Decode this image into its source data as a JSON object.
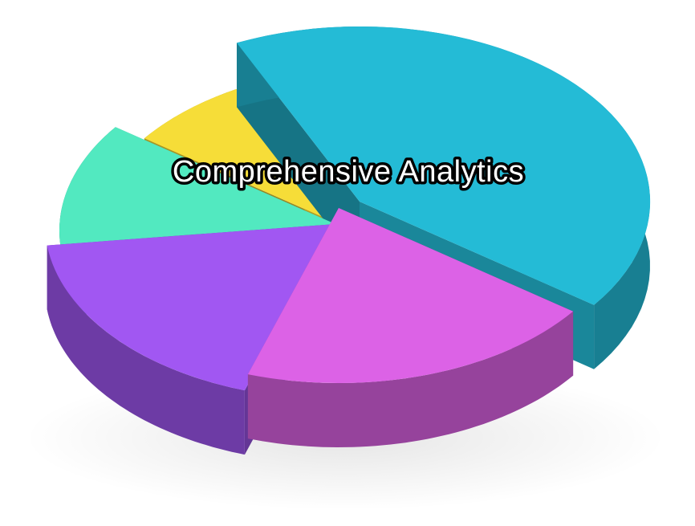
{
  "chart_data": {
    "type": "pie",
    "style": "3d-exploded",
    "title": "Comprehensive Analytics",
    "slices": [
      {
        "share": 0.42,
        "color": "#24BBD6"
      },
      {
        "share": 0.2,
        "color": "#DC62E6"
      },
      {
        "share": 0.18,
        "color": "#A157F2"
      },
      {
        "share": 0.12,
        "color": "#52E9C0"
      },
      {
        "share": 0.08,
        "color": "#F6DD38"
      }
    ],
    "legend": "none"
  }
}
